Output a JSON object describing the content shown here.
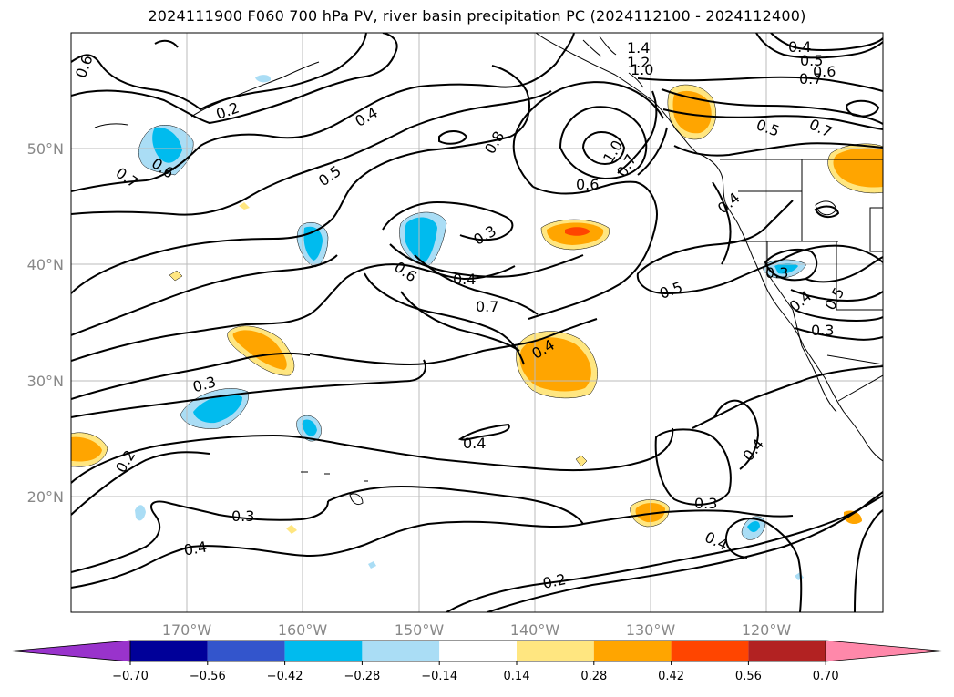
{
  "title": "2024111900 F060 700 hPa PV, river basin precipitation PC (2024112100 - 2024112400)",
  "axes": {
    "lat_ticks": [
      "50°N",
      "40°N",
      "30°N",
      "20°N"
    ],
    "lon_ticks": [
      "170°W",
      "160°W",
      "150°W",
      "140°W",
      "130°W",
      "120°W"
    ]
  },
  "contour_labels": [
    "0.6",
    "0.7",
    "0.6",
    "0.2",
    "0.4",
    "0.5",
    "0.6",
    "0.8",
    "0.3",
    "0.4",
    "0.7",
    "1.0",
    "0.7",
    "0.6",
    "1.4",
    "1.2",
    "1.0",
    "0.4",
    "0.5",
    "0.6",
    "0.7",
    "0.5",
    "0.7",
    "0.4",
    "0.5",
    "0.3",
    "0.4",
    "0.5",
    "0.3",
    "0.4",
    "0.3",
    "0.2",
    "0.4",
    "0.4",
    "0.3",
    "0.4",
    "0.2",
    "0.3",
    "0.4"
  ],
  "colorbar": {
    "colors": [
      "#9933cc",
      "#000099",
      "#3355cc",
      "#00bbee",
      "#aaddf5",
      "#ffffff",
      "#ffe680",
      "#ffa500",
      "#ff4500",
      "#b22222",
      "#ff88aa"
    ],
    "labels": [
      "−0.70",
      "−0.56",
      "−0.42",
      "−0.28",
      "−0.14",
      "0.14",
      "0.28",
      "0.42",
      "0.56",
      "0.70"
    ]
  },
  "palette": {
    "blue_dark": "#00bbee",
    "blue_light": "#aaddf5",
    "yellow": "#ffe680",
    "orange": "#ffa500",
    "red": "#ff4500"
  }
}
